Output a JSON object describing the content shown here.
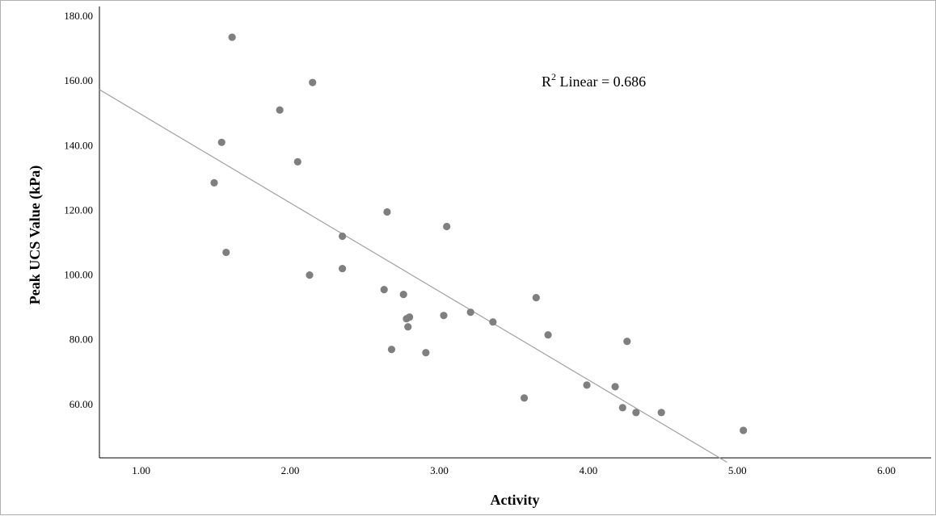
{
  "chart_data": {
    "type": "scatter",
    "xlabel": "Activity",
    "ylabel": "Peak UCS Value (kPa)",
    "xlim": [
      0.72,
      6.3
    ],
    "ylim": [
      43.5,
      183
    ],
    "x_ticks": [
      "1.00",
      "2.00",
      "3.00",
      "4.00",
      "5.00",
      "6.00"
    ],
    "y_ticks": [
      "60.00",
      "80.00",
      "100.00",
      "120.00",
      "140.00",
      "160.00",
      "180.00"
    ],
    "grid": false,
    "fit_line": {
      "type": "linear",
      "slope": -27.35,
      "intercept": 177.0,
      "x_range": [
        0.72,
        4.93
      ]
    },
    "annotation": {
      "base": "R",
      "sup": "2",
      "text": " Linear = 0.686"
    },
    "marker_color": "#7f7f7f",
    "line_color": "#a0a0a0",
    "points": [
      [
        1.61,
        173.5
      ],
      [
        2.15,
        159.5
      ],
      [
        1.93,
        151.0
      ],
      [
        1.54,
        141.0
      ],
      [
        2.05,
        135.0
      ],
      [
        1.49,
        128.5
      ],
      [
        2.65,
        119.5
      ],
      [
        3.05,
        115.0
      ],
      [
        2.35,
        112.0
      ],
      [
        1.57,
        107.0
      ],
      [
        2.35,
        102.0
      ],
      [
        2.13,
        100.0
      ],
      [
        2.63,
        95.5
      ],
      [
        2.76,
        94.0
      ],
      [
        3.65,
        93.0
      ],
      [
        3.21,
        88.5
      ],
      [
        2.8,
        87.0
      ],
      [
        2.78,
        86.5
      ],
      [
        3.03,
        87.5
      ],
      [
        3.36,
        85.5
      ],
      [
        2.79,
        84.0
      ],
      [
        3.73,
        81.5
      ],
      [
        4.26,
        79.5
      ],
      [
        2.68,
        77.0
      ],
      [
        2.91,
        76.0
      ],
      [
        3.99,
        66.0
      ],
      [
        4.18,
        65.5
      ],
      [
        3.57,
        62.0
      ],
      [
        4.23,
        59.0
      ],
      [
        4.32,
        57.5
      ],
      [
        4.49,
        57.5
      ],
      [
        5.04,
        52.0
      ]
    ]
  }
}
